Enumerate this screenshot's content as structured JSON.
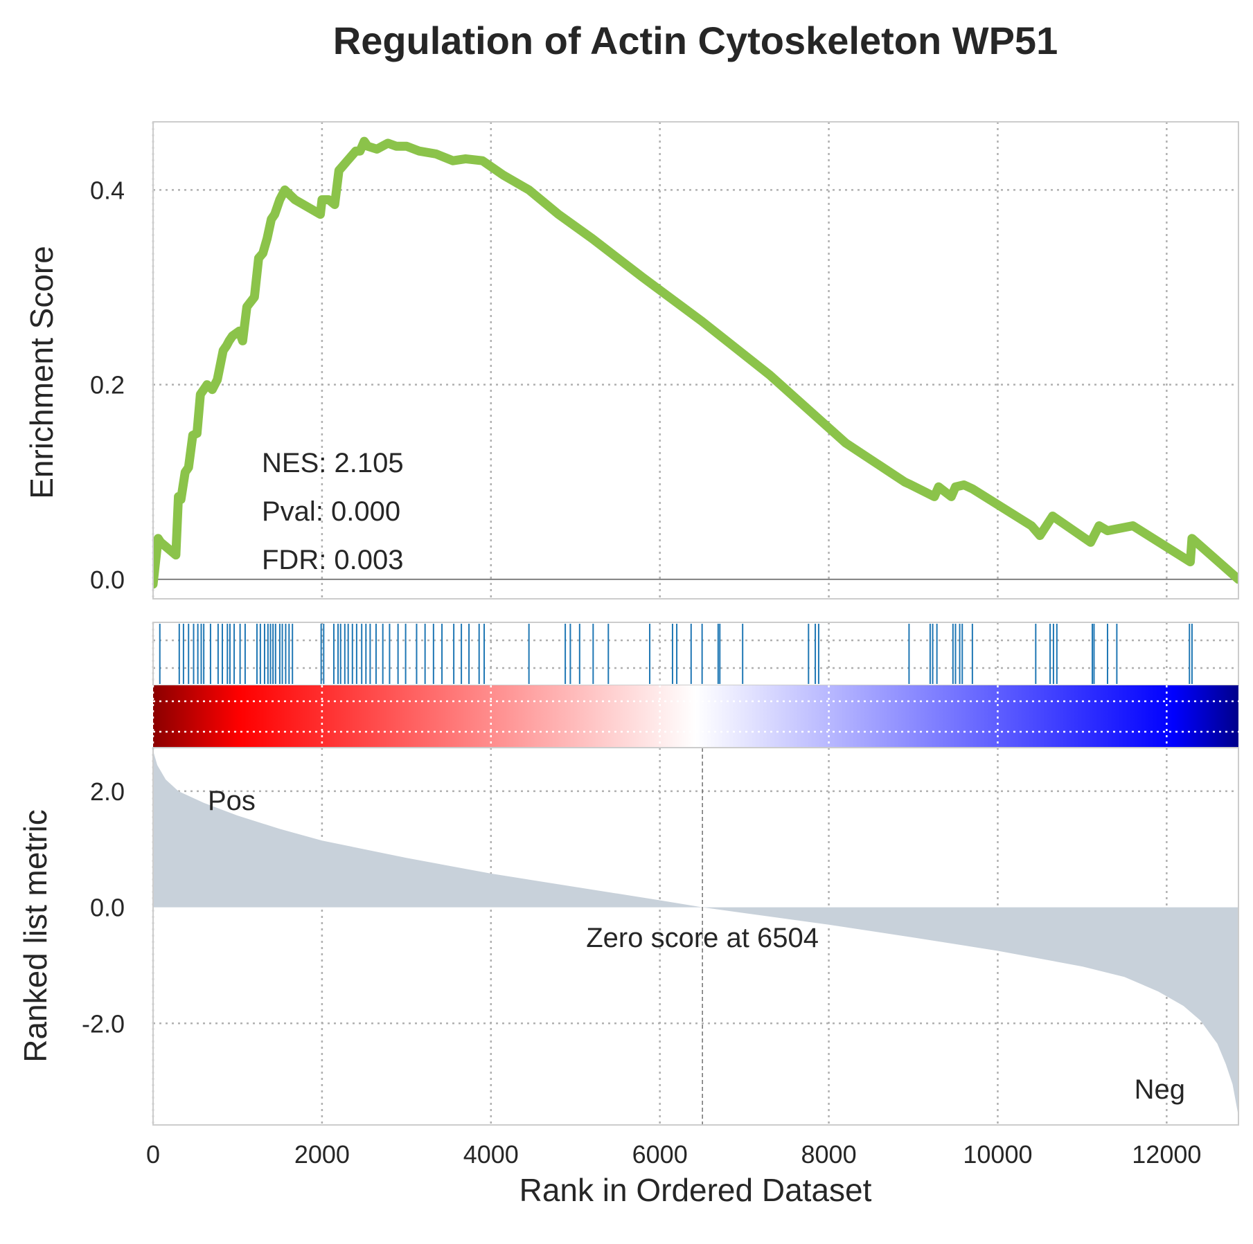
{
  "chart_data": {
    "type": "line",
    "title": "Regulation of Actin Cytoskeleton WP51",
    "xlabel": "Rank in Ordered Dataset",
    "xlim": [
      0,
      12850
    ],
    "xticks": [
      "0",
      "2000",
      "4000",
      "6000",
      "8000",
      "10000",
      "12000"
    ],
    "grid": true,
    "es_panel": {
      "ylabel": "Enrichment Score",
      "ylim": [
        -0.02,
        0.47
      ],
      "yticks": [
        "0.0",
        "0.2",
        "0.4"
      ],
      "line_color": "#8bc34a",
      "x": [
        0,
        60,
        90,
        270,
        300,
        330,
        380,
        420,
        470,
        520,
        560,
        600,
        640,
        700,
        760,
        830,
        870,
        900,
        940,
        1020,
        1060,
        1110,
        1200,
        1250,
        1300,
        1350,
        1400,
        1440,
        1500,
        1560,
        1620,
        1680,
        1980,
        2000,
        2080,
        2150,
        2200,
        2250,
        2300,
        2400,
        2450,
        2500,
        2540,
        2650,
        2780,
        2880,
        3000,
        3150,
        3350,
        3550,
        3700,
        3900,
        4150,
        4450,
        4800,
        5200,
        5800,
        6500,
        7300,
        8200,
        8900,
        8950,
        9250,
        9300,
        9450,
        9500,
        9600,
        9700,
        10400,
        10500,
        10650,
        11100,
        11200,
        11300,
        11600,
        12280,
        12300,
        12850
      ],
      "y": [
        -0.005,
        0.042,
        0.038,
        0.025,
        0.085,
        0.082,
        0.11,
        0.115,
        0.148,
        0.15,
        0.19,
        0.195,
        0.2,
        0.195,
        0.205,
        0.235,
        0.24,
        0.245,
        0.25,
        0.255,
        0.245,
        0.28,
        0.29,
        0.33,
        0.335,
        0.35,
        0.37,
        0.375,
        0.39,
        0.4,
        0.395,
        0.39,
        0.375,
        0.39,
        0.39,
        0.385,
        0.42,
        0.425,
        0.43,
        0.44,
        0.44,
        0.45,
        0.445,
        0.442,
        0.448,
        0.445,
        0.445,
        0.44,
        0.437,
        0.43,
        0.432,
        0.43,
        0.415,
        0.4,
        0.375,
        0.35,
        0.31,
        0.265,
        0.21,
        0.14,
        0.1,
        0.098,
        0.085,
        0.095,
        0.085,
        0.095,
        0.097,
        0.093,
        0.055,
        0.045,
        0.065,
        0.038,
        0.055,
        0.05,
        0.055,
        0.018,
        0.042,
        0.0
      ]
    },
    "hits": [
      80,
      310,
      360,
      420,
      480,
      530,
      570,
      600,
      680,
      770,
      820,
      880,
      910,
      960,
      1030,
      1090,
      1230,
      1270,
      1320,
      1360,
      1390,
      1420,
      1450,
      1500,
      1530,
      1570,
      1610,
      1650,
      1990,
      2020,
      2140,
      2190,
      2220,
      2270,
      2310,
      2360,
      2410,
      2470,
      2520,
      2570,
      2640,
      2720,
      2800,
      2900,
      2990,
      3120,
      3220,
      3320,
      3420,
      3560,
      3650,
      3740,
      3860,
      3920,
      4450,
      4880,
      4940,
      5050,
      5210,
      5390,
      5880,
      6150,
      6200,
      6370,
      6500,
      6690,
      6710,
      6980,
      7760,
      7840,
      7880,
      8950,
      9200,
      9230,
      9280,
      9470,
      9500,
      9550,
      9580,
      9700,
      10450,
      10620,
      10660,
      10700,
      11120,
      11140,
      11300,
      11410,
      12270,
      12300
    ],
    "metric_panel": {
      "ylabel": "Ranked list metric",
      "ylim": [
        -3.75,
        2.75
      ],
      "yticks": [
        "2.0",
        "0.0",
        "-2.0"
      ],
      "fill_color": "#c8d1da",
      "x": [
        0,
        50,
        150,
        300,
        600,
        1000,
        1500,
        2000,
        3000,
        4000,
        5000,
        6000,
        6504,
        7000,
        8000,
        9000,
        10000,
        11000,
        11500,
        11900,
        12200,
        12400,
        12600,
        12700,
        12780,
        12850
      ],
      "y": [
        2.7,
        2.45,
        2.2,
        2.0,
        1.8,
        1.58,
        1.35,
        1.15,
        0.85,
        0.58,
        0.35,
        0.12,
        0.0,
        -0.1,
        -0.3,
        -0.52,
        -0.75,
        -1.02,
        -1.2,
        -1.45,
        -1.7,
        -1.95,
        -2.35,
        -2.7,
        -3.05,
        -3.6
      ],
      "zero_cross_x": 6504,
      "zero_label": "Zero score at 6504",
      "pos_label": "Pos",
      "neg_label": "Neg",
      "pos_color": "#ff0000",
      "neg_color": "#0000ff"
    },
    "stats": {
      "nes": "NES: 2.105",
      "pval": "Pval: 0.000",
      "fdr": "FDR: 0.003"
    },
    "hit_color": "#1f77b4",
    "colorbar_colors": [
      "#8b0000",
      "#ff0000",
      "#ffffff",
      "#0000ff",
      "#00008b"
    ]
  }
}
